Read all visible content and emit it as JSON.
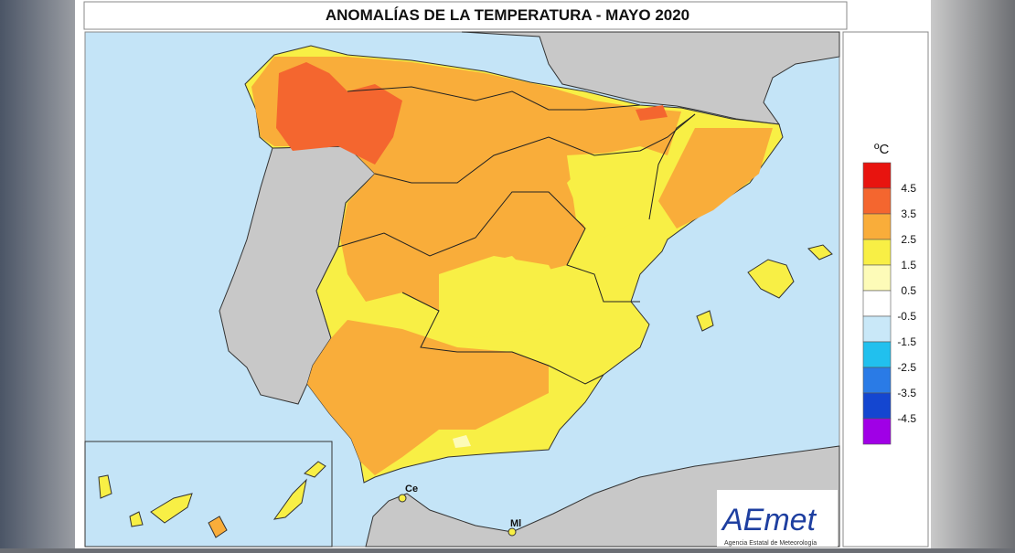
{
  "title": "ANOMALÍAS DE LA TEMPERATURA - MAYO 2020",
  "legend": {
    "unit": "ºC",
    "thresholds": [
      4.5,
      3.5,
      2.5,
      1.5,
      0.5,
      -0.5,
      -1.5,
      -2.5,
      -3.5,
      -4.5
    ],
    "colors": [
      "#e8140f",
      "#f4662f",
      "#f9ad3a",
      "#f8ef45",
      "#fdfbb8",
      "#ffffff",
      "#c9e8f8",
      "#21c0ee",
      "#2a7be6",
      "#1446d0",
      "#a000e6"
    ]
  },
  "labels": {
    "ceuta": "Ce",
    "melilla": "Ml"
  },
  "logo": {
    "name": "AEmet",
    "subtitle": "Agencia Estatal de Meteorología"
  }
}
